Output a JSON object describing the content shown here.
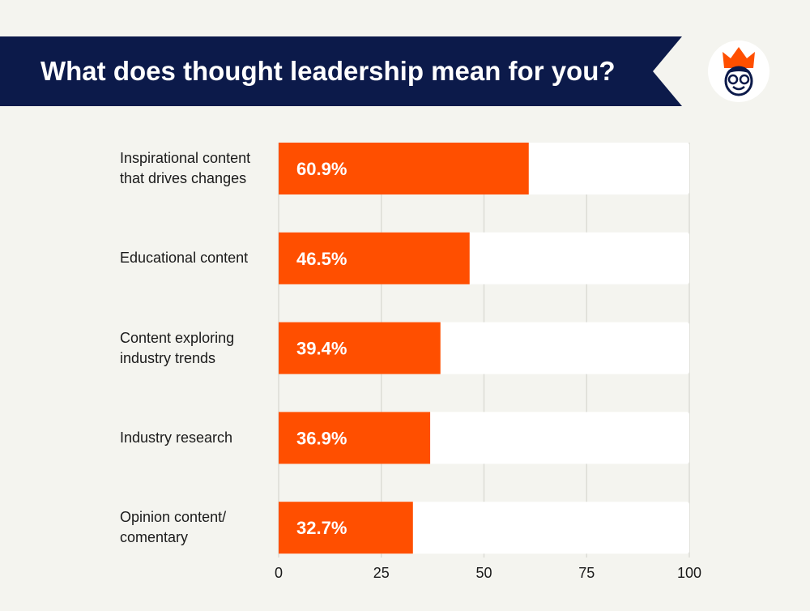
{
  "header": {
    "title": "What does thought leadership mean for you?",
    "logo": "crowned-face-logo"
  },
  "colors": {
    "banner": "#0c1a4a",
    "bar": "#ff4f00",
    "track": "#ffffff",
    "background": "#f4f4ef"
  },
  "chart_data": {
    "type": "bar",
    "orientation": "horizontal",
    "title": "What does thought leadership mean for you?",
    "categories": [
      [
        "Inspirational content",
        "that drives changes"
      ],
      [
        "Educational content"
      ],
      [
        "Content exploring",
        "industry trends"
      ],
      [
        "Industry research"
      ],
      [
        "Opinion content/",
        "comentary"
      ]
    ],
    "values": [
      60.9,
      46.5,
      39.4,
      36.9,
      32.7
    ],
    "labels": [
      "60.9%",
      "46.5%",
      "39.4%",
      "36.9%",
      "32.7%"
    ],
    "xlim": [
      0,
      100
    ],
    "xticks": [
      0,
      25,
      50,
      75,
      100
    ],
    "grid": true
  }
}
